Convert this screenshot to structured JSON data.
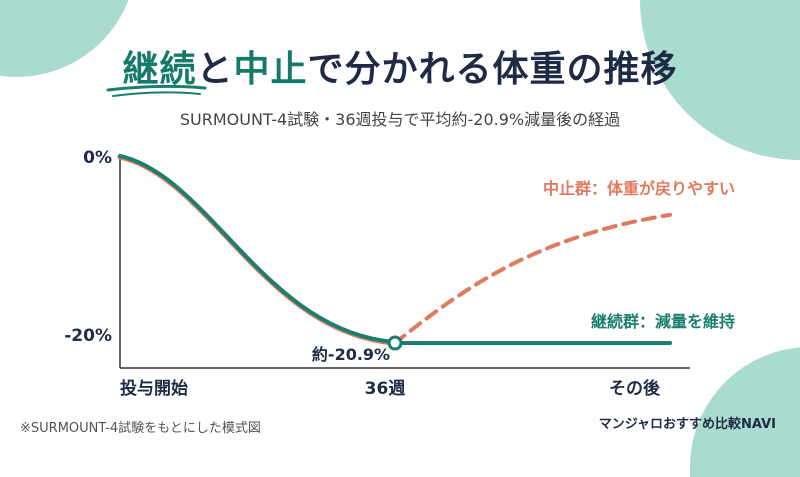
{
  "header": {
    "title_part1": "継続",
    "title_part2": "と",
    "title_part3": "中止",
    "title_part4": "で分かれる体重の推移",
    "subtitle": "SURMOUNT-4試験・36週投与で平均約-20.9%減量後の経過"
  },
  "chart_data": {
    "type": "line",
    "x_categories": [
      "投与開始",
      "36週",
      "その後"
    ],
    "y_ticks": [
      "0%",
      "-20%"
    ],
    "ylim": [
      -25,
      0
    ],
    "series": [
      {
        "name": "中止群：体重が戻りやすい",
        "color": "#e07a5f",
        "style": "dashed",
        "points": [
          [
            0,
            0
          ],
          [
            0.5,
            -20.9
          ],
          [
            0.75,
            -12
          ],
          [
            1.0,
            -6.5
          ]
        ]
      },
      {
        "name": "継続群：減量を維持",
        "color": "#1a7f6e",
        "style": "solid",
        "points": [
          [
            0,
            0
          ],
          [
            0.5,
            -20.9
          ],
          [
            1.0,
            -20.9
          ]
        ]
      }
    ],
    "annotation": "約-20.9%"
  },
  "footer": {
    "note": "※SURMOUNT-4試験をもとにした模式図",
    "brand": "マンジャロおすすめ比較NAVI"
  },
  "colors": {
    "teal": "#1a7f6e",
    "coral": "#e07a5f",
    "navy": "#1f2a44",
    "mint": "#a9dccf"
  }
}
